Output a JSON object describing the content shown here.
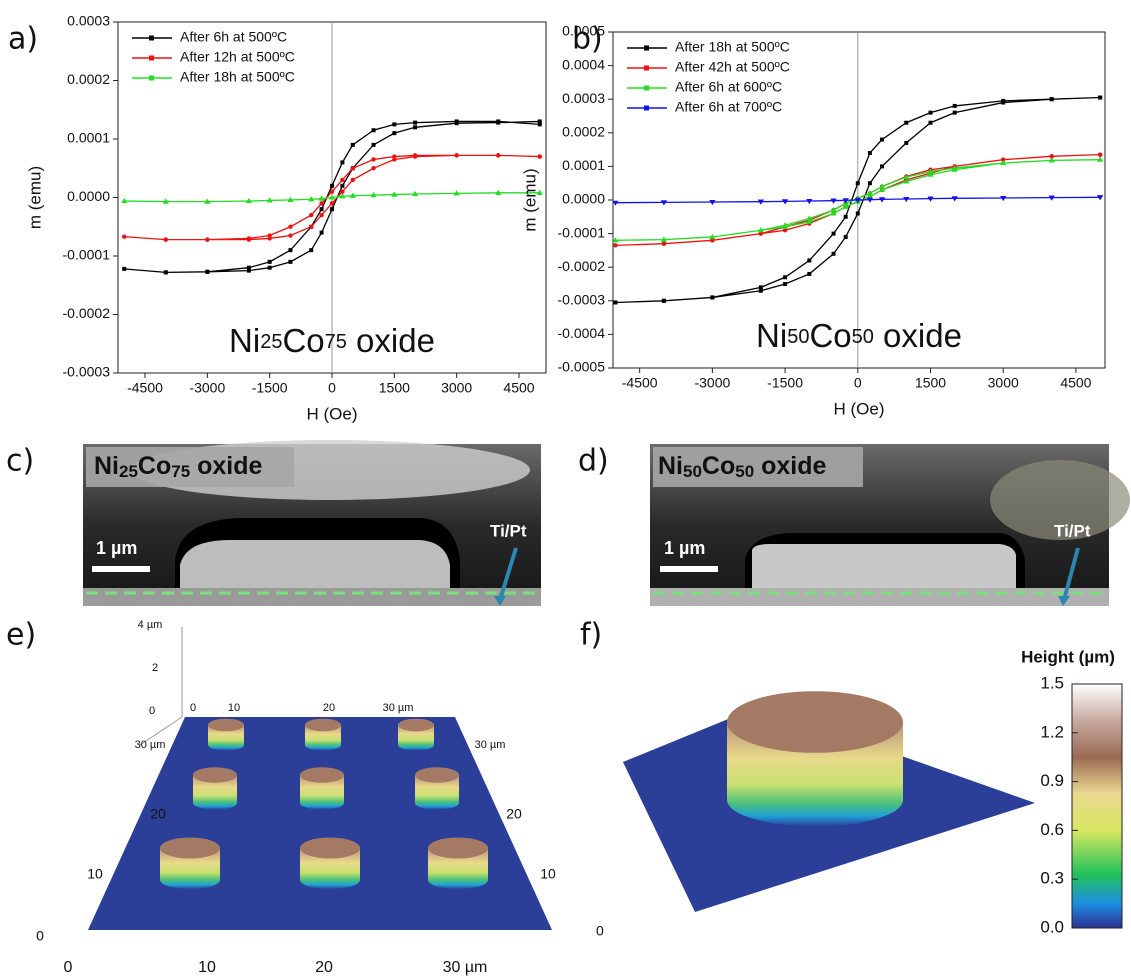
{
  "chart_data": [
    {
      "type": "line",
      "label": "a)",
      "xlabel": "H (Oe)",
      "ylabel": "m (emu)",
      "annotation": [
        "Ni",
        "25",
        "Co",
        "75",
        " oxide"
      ],
      "xlim": [
        -5150,
        5150
      ],
      "ylim": [
        -0.0003,
        0.0003
      ],
      "xticks": [
        -4500,
        -3000,
        -1500,
        0,
        1500,
        3000,
        4500
      ],
      "yticks": [
        -0.0003,
        -0.0002,
        -0.0001,
        {
          "value": 0,
          "label": "0.0000"
        },
        0.0001,
        0.0002,
        0.0003
      ],
      "legend": "upper left",
      "x": [
        5000,
        4000,
        3000,
        2000,
        1500,
        1000,
        500,
        250,
        0,
        -250,
        -500,
        -1000,
        -1500,
        -2000,
        -3000,
        -4000,
        -5000,
        -4000,
        -3000,
        -2000,
        -1500,
        -1000,
        -500,
        -250,
        0,
        250,
        500,
        1000,
        1500,
        2000,
        3000,
        4000,
        5000
      ],
      "series": [
        {
          "name": "After 6h at 500ºC",
          "color": "#000000",
          "marker": "square",
          "values": [
            0.000125,
            0.00013,
            0.00013,
            0.000128,
            0.000125,
            0.000115,
            9e-05,
            6e-05,
            2e-05,
            -2e-05,
            -5e-05,
            -9e-05,
            -0.00011,
            -0.00012,
            -0.000127,
            -0.000128,
            -0.000122,
            -0.000128,
            -0.000127,
            -0.000125,
            -0.00012,
            -0.00011,
            -9e-05,
            -6e-05,
            -2e-05,
            2e-05,
            5e-05,
            9e-05,
            0.00011,
            0.00012,
            0.000127,
            0.000128,
            0.00013
          ]
        },
        {
          "name": "After 12h at 500ºC",
          "color": "#ee1111",
          "marker": "circle",
          "values": [
            7e-05,
            7.2e-05,
            7.2e-05,
            7.2e-05,
            7e-05,
            6.5e-05,
            5e-05,
            3e-05,
            1e-05,
            -1e-05,
            -3e-05,
            -5e-05,
            -6.5e-05,
            -7e-05,
            -7.2e-05,
            -7.2e-05,
            -6.7e-05,
            -7.2e-05,
            -7.2e-05,
            -7.2e-05,
            -7e-05,
            -6.5e-05,
            -5e-05,
            -3e-05,
            -1e-05,
            1e-05,
            3e-05,
            5e-05,
            6.5e-05,
            7e-05,
            7.2e-05,
            7.2e-05,
            7e-05
          ]
        },
        {
          "name": "After 18h at 500ºC",
          "color": "#22dd22",
          "marker": "triangle",
          "values": [
            8e-06,
            8e-06,
            7e-06,
            6e-06,
            5e-06,
            4e-06,
            3e-06,
            2e-06,
            0,
            -2e-06,
            -3e-06,
            -4e-06,
            -5e-06,
            -6e-06,
            -7e-06,
            -7e-06,
            -6e-06,
            -7e-06,
            -7e-06,
            -6e-06,
            -5e-06,
            -4e-06,
            -3e-06,
            -2e-06,
            0,
            2e-06,
            3e-06,
            4e-06,
            5e-06,
            6e-06,
            7e-06,
            8e-06,
            8e-06
          ]
        }
      ]
    },
    {
      "type": "line",
      "label": "b)",
      "xlabel": "H (Oe)",
      "ylabel": "m (emu)",
      "annotation": [
        "Ni",
        "50",
        "Co",
        "50",
        " oxide"
      ],
      "xlim": [
        -5050,
        5100
      ],
      "ylim": [
        -0.0005,
        0.0005
      ],
      "xticks": [
        -4500,
        -3000,
        -1500,
        0,
        1500,
        3000,
        4500
      ],
      "yticks": [
        -0.0005,
        -0.0004,
        -0.0003,
        -0.0002,
        -0.0001,
        {
          "value": 0,
          "label": "0.0000"
        },
        0.0001,
        0.0002,
        0.0003,
        0.0004,
        0.0005
      ],
      "legend": "upper left",
      "x": [
        5000,
        4000,
        3000,
        2000,
        1500,
        1000,
        500,
        250,
        0,
        -250,
        -500,
        -1000,
        -1500,
        -2000,
        -3000,
        -4000,
        -5000,
        -4000,
        -3000,
        -2000,
        -1500,
        -1000,
        -500,
        -250,
        0,
        250,
        500,
        1000,
        1500,
        2000,
        3000,
        4000,
        5000
      ],
      "series": [
        {
          "name": "After 18h at 500ºC",
          "color": "#000000",
          "marker": "square",
          "values": [
            0.000305,
            0.0003,
            0.000295,
            0.00028,
            0.00026,
            0.00023,
            0.00018,
            0.00014,
            5e-05,
            -5e-05,
            -0.0001,
            -0.00018,
            -0.00023,
            -0.00026,
            -0.00029,
            -0.0003,
            -0.000305,
            -0.0003,
            -0.00029,
            -0.00027,
            -0.00025,
            -0.00022,
            -0.00016,
            -0.00011,
            -4e-05,
            5e-05,
            0.0001,
            0.00017,
            0.00023,
            0.00026,
            0.00029,
            0.0003,
            0.000305
          ]
        },
        {
          "name": "After 42h at 500ºC",
          "color": "#ee1111",
          "marker": "circle",
          "values": [
            0.000135,
            0.00013,
            0.00012,
            0.0001,
            9e-05,
            7e-05,
            4e-05,
            2e-05,
            5e-06,
            -1e-05,
            -3e-05,
            -6e-05,
            -8e-05,
            -0.0001,
            -0.00012,
            -0.00013,
            -0.000135,
            -0.00013,
            -0.00012,
            -0.0001,
            -9e-05,
            -7e-05,
            -4e-05,
            -2e-05,
            -5e-06,
            1e-05,
            3e-05,
            6e-05,
            8e-05,
            0.0001,
            0.00012,
            0.00013,
            0.000135
          ]
        },
        {
          "name": "After 6h at 600ºC",
          "color": "#22dd22",
          "marker": "triangle",
          "values": [
            0.00012,
            0.000118,
            0.00011,
            9.5e-05,
            8.5e-05,
            6.8e-05,
            4e-05,
            2e-05,
            5e-06,
            -1e-05,
            -3e-05,
            -5.5e-05,
            -7.5e-05,
            -9e-05,
            -0.00011,
            -0.000118,
            -0.00012,
            -0.000118,
            -0.00011,
            -9e-05,
            -8e-05,
            -6.5e-05,
            -4e-05,
            -2e-05,
            -5e-06,
            1e-05,
            3e-05,
            5.5e-05,
            7.5e-05,
            9e-05,
            0.00011,
            0.000118,
            0.00012
          ]
        },
        {
          "name": "After 6h at 700ºC",
          "color": "#1111ee",
          "marker": "triangle-down",
          "values": [
            8e-06,
            7e-06,
            6e-06,
            5e-06,
            4e-06,
            3e-06,
            2e-06,
            1e-06,
            0,
            -1e-06,
            -2e-06,
            -3e-06,
            -4e-06,
            -5e-06,
            -6e-06,
            -7e-06,
            -8e-06,
            -7e-06,
            -6e-06,
            -5e-06,
            -4e-06,
            -3e-06,
            -2e-06,
            -1e-06,
            0,
            1e-06,
            2e-06,
            3e-06,
            4e-06,
            5e-06,
            6e-06,
            7e-06,
            8e-06
          ]
        }
      ]
    }
  ],
  "sem": [
    {
      "panel": "c)",
      "label": [
        "Ni",
        "25",
        "Co",
        "75",
        " oxide"
      ],
      "scale": "1 µm",
      "marker": "Ti/Pt"
    },
    {
      "panel": "d)",
      "label": [
        "Ni",
        "50",
        "Co",
        "50",
        " oxide"
      ],
      "scale": "1 µm",
      "marker": "Ti/Pt"
    }
  ],
  "afm_e": {
    "panel": "e)",
    "z_labels": [
      "4 µm",
      "2",
      "0"
    ],
    "top_labels": [
      "0",
      "10",
      "20",
      "30 µm"
    ],
    "left_labels": [
      "30 µm",
      "20",
      "10",
      "0"
    ],
    "right_labels": [
      "30 µm",
      "20",
      "10"
    ],
    "bottom_labels": [
      "0",
      "10",
      "20",
      "30 µm"
    ]
  },
  "afm_f": {
    "panel": "f)",
    "corner_label": "0"
  },
  "colorbar": {
    "title": "Height (µm)",
    "lim": [
      0,
      1.5
    ],
    "ticks": [
      {
        "value": 0,
        "label": "0.0"
      },
      0.3,
      0.6,
      0.9,
      1.2,
      1.5
    ]
  }
}
